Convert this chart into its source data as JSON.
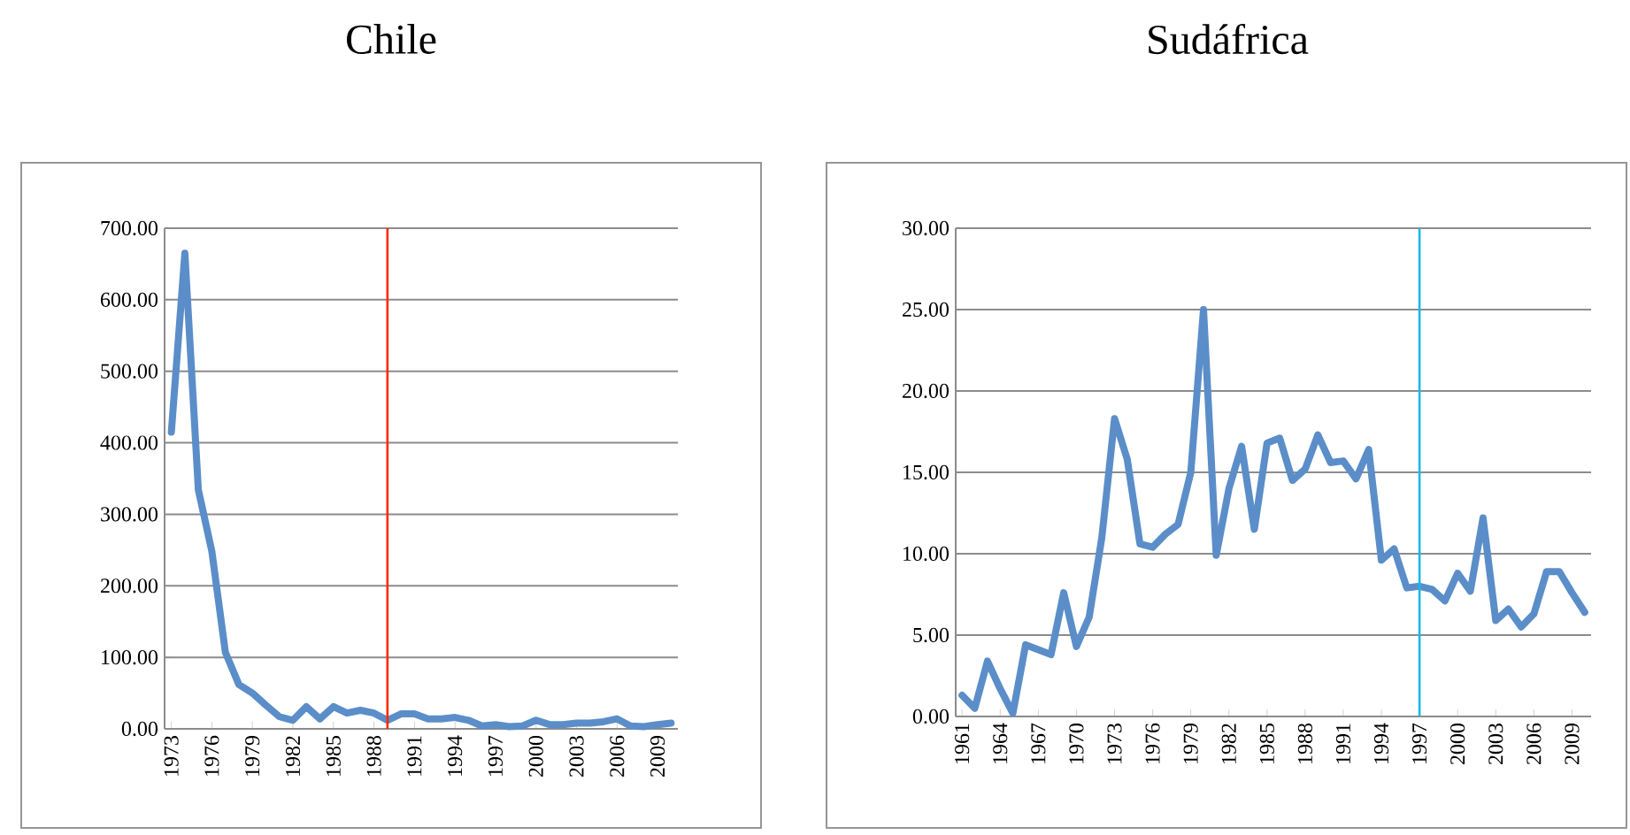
{
  "chart_data": [
    {
      "type": "line",
      "title": "Chile",
      "x": [
        1973,
        1974,
        1975,
        1976,
        1977,
        1978,
        1979,
        1980,
        1981,
        1982,
        1983,
        1984,
        1985,
        1986,
        1987,
        1988,
        1989,
        1990,
        1991,
        1992,
        1993,
        1994,
        1995,
        1996,
        1997,
        1998,
        1999,
        2000,
        2001,
        2002,
        2003,
        2004,
        2005,
        2006,
        2007,
        2008,
        2009,
        2010
      ],
      "series": [
        {
          "color": "#5b8ec9",
          "values": [
            415,
            665,
            334,
            248,
            107,
            62,
            50,
            33,
            17,
            12,
            31,
            14,
            31,
            22,
            26,
            22,
            12,
            21,
            21,
            14,
            14,
            16,
            12,
            4,
            6,
            3,
            4,
            12,
            6,
            6,
            8,
            8,
            10,
            14,
            4,
            3,
            6,
            8
          ]
        }
      ],
      "xlim": [
        1972.5,
        2010.5
      ],
      "xticks": [
        1973,
        1976,
        1979,
        1982,
        1985,
        1988,
        1991,
        1994,
        1997,
        2000,
        2003,
        2006,
        2009
      ],
      "ylim": [
        0,
        700
      ],
      "yticks": [
        {
          "value": 0,
          "label": "0.00"
        },
        {
          "value": 100,
          "label": "100.00"
        },
        {
          "value": 200,
          "label": "200.00"
        },
        {
          "value": 300,
          "label": "300.00"
        },
        {
          "value": 400,
          "label": "400.00"
        },
        {
          "value": 500,
          "label": "500.00"
        },
        {
          "value": 600,
          "label": "600.00"
        },
        {
          "value": 700,
          "label": "700.00"
        }
      ],
      "grid": "y",
      "marker": "none",
      "line_style": "solid",
      "ref_lines": [
        {
          "axis": "x",
          "value": 1989,
          "color": "#ff2a00"
        }
      ]
    },
    {
      "type": "line",
      "title": "Sudáfrica",
      "x": [
        1961,
        1962,
        1963,
        1964,
        1965,
        1966,
        1967,
        1968,
        1969,
        1970,
        1971,
        1972,
        1973,
        1974,
        1975,
        1976,
        1977,
        1978,
        1979,
        1980,
        1981,
        1982,
        1983,
        1984,
        1985,
        1986,
        1987,
        1988,
        1989,
        1990,
        1991,
        1992,
        1993,
        1994,
        1995,
        1996,
        1997,
        1998,
        1999,
        2000,
        2001,
        2002,
        2003,
        2004,
        2005,
        2006,
        2007,
        2008,
        2009,
        2010
      ],
      "series": [
        {
          "color": "#5b8ec9",
          "values": [
            1.3,
            0.5,
            3.4,
            1.7,
            0.2,
            4.4,
            4.1,
            3.8,
            7.6,
            4.3,
            6.1,
            11.0,
            18.3,
            15.8,
            10.6,
            10.4,
            11.2,
            11.8,
            15.0,
            25.0,
            9.9,
            14.0,
            16.6,
            11.5,
            16.8,
            17.1,
            14.5,
            15.2,
            17.3,
            15.6,
            15.7,
            14.6,
            16.4,
            9.6,
            10.3,
            7.9,
            8.0,
            7.8,
            7.1,
            8.8,
            7.7,
            12.2,
            5.9,
            6.6,
            5.5,
            6.3,
            8.9,
            8.9,
            7.6,
            6.4
          ]
        }
      ],
      "xlim": [
        1960.5,
        2010.5
      ],
      "xticks": [
        1961,
        1964,
        1967,
        1970,
        1973,
        1976,
        1979,
        1982,
        1985,
        1988,
        1991,
        1994,
        1997,
        2000,
        2003,
        2006,
        2009
      ],
      "ylim": [
        0,
        30
      ],
      "yticks": [
        {
          "value": 0,
          "label": "0.00"
        },
        {
          "value": 5,
          "label": "5.00"
        },
        {
          "value": 10,
          "label": "10.00"
        },
        {
          "value": 15,
          "label": "15.00"
        },
        {
          "value": 20,
          "label": "20.00"
        },
        {
          "value": 25,
          "label": "25.00"
        },
        {
          "value": 30,
          "label": "30.00"
        }
      ],
      "grid": "y",
      "marker": "none",
      "line_style": "solid",
      "ref_lines": [
        {
          "axis": "x",
          "value": 1997,
          "color": "#1ab8e8"
        }
      ]
    }
  ]
}
